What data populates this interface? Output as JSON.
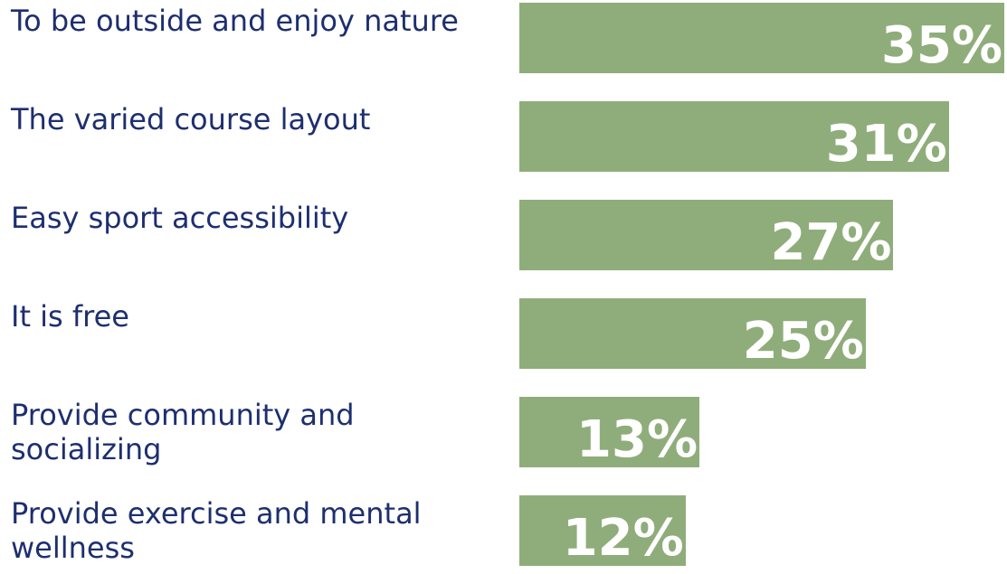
{
  "chart_data": {
    "type": "bar",
    "orientation": "horizontal",
    "categories": [
      "To be outside and enjoy nature",
      "The varied course layout",
      "Easy sport accessibility",
      "It is free",
      "Provide community and socializing",
      "Provide exercise and mental wellness"
    ],
    "values": [
      35,
      31,
      27,
      25,
      13,
      12
    ],
    "value_labels": [
      "35%",
      "31%",
      "27%",
      "25%",
      "13%",
      "12%"
    ],
    "color": "#8fad7a"
  }
}
